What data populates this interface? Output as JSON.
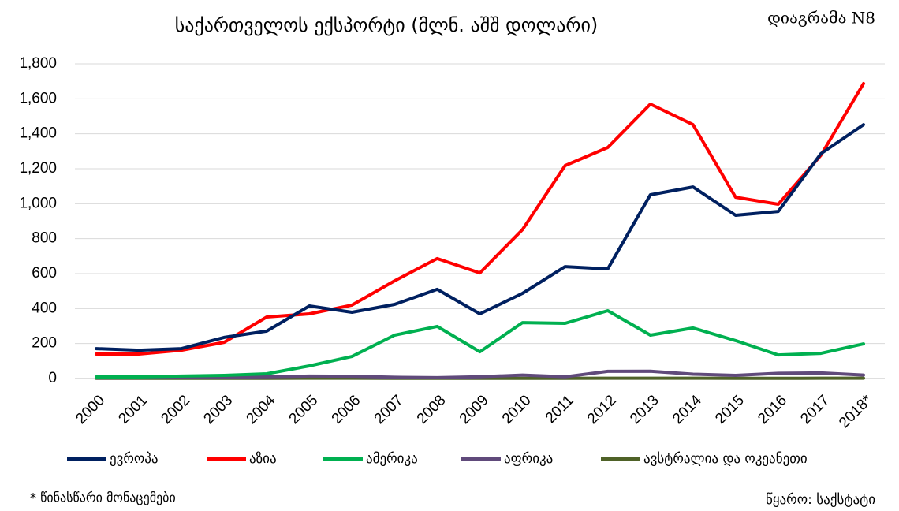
{
  "chart_data": {
    "type": "line",
    "title": "საქართველოს ექსპორტი (მლნ. აშშ დოლარი)",
    "chart_label": "დიაგრამა N8",
    "footnote": "* წინასწარი მონაცემები",
    "source": "წყარო: საქსტატი",
    "categories": [
      "2000",
      "2001",
      "2002",
      "2003",
      "2004",
      "2005",
      "2006",
      "2007",
      "2008",
      "2009",
      "2010",
      "2011",
      "2012",
      "2013",
      "2014",
      "2015",
      "2016",
      "2017",
      "2018*"
    ],
    "ylim": [
      0,
      1800
    ],
    "yticks": [
      0,
      200,
      400,
      600,
      800,
      {
        "value": 1000,
        "label": "1,000"
      },
      {
        "value": 1200,
        "label": "1,200"
      },
      {
        "value": 1400,
        "label": "1,400"
      },
      {
        "value": 1600,
        "label": "1,600"
      },
      {
        "value": 1800,
        "label": "1,800"
      }
    ],
    "grid": true,
    "legend": "bottom",
    "series": [
      {
        "name": "ევროპა",
        "color": "#002060",
        "values": [
          171,
          162,
          171,
          235,
          271,
          415,
          379,
          424,
          510,
          370,
          487,
          640,
          627,
          1051,
          1096,
          934,
          956,
          1286,
          1452
        ]
      },
      {
        "name": "აზია",
        "color": "#ff0000",
        "values": [
          140,
          140,
          162,
          207,
          352,
          370,
          420,
          559,
          686,
          604,
          852,
          1218,
          1322,
          1570,
          1452,
          1037,
          997,
          1277,
          1687
        ]
      },
      {
        "name": "ამერიკა",
        "color": "#00b050",
        "values": [
          9,
          9,
          14,
          18,
          27,
          72,
          126,
          248,
          298,
          153,
          320,
          316,
          388,
          248,
          289,
          217,
          135,
          144,
          198
        ]
      },
      {
        "name": "აფრიკა",
        "color": "#604a7b",
        "values": [
          3,
          4,
          5,
          7,
          10,
          14,
          13,
          7,
          5,
          10,
          20,
          10,
          41,
          42,
          25,
          18,
          30,
          32,
          20
        ]
      },
      {
        "name": "ავსტრალია და ოკეანეთი",
        "color": "#4f6228",
        "values": [
          1,
          1,
          1,
          1,
          1,
          2,
          2,
          1,
          1,
          1,
          1,
          1,
          2,
          2,
          2,
          1,
          1,
          2,
          2
        ]
      }
    ]
  }
}
